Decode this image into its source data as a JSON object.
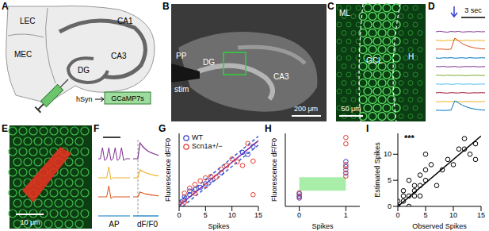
{
  "panel_labels": [
    "A",
    "B",
    "C",
    "D",
    "E",
    "F",
    "G",
    "H",
    "I"
  ],
  "A": {
    "regions": [
      "LEC",
      "MEC",
      "CA1",
      "CA3",
      "DG"
    ],
    "promoter": "hSyn",
    "virus": "GCaMP7s"
  },
  "B": {
    "labels": [
      "PP",
      "stim",
      "DG",
      "CA3"
    ],
    "scale_bar": "200 μm"
  },
  "C": {
    "labels": [
      "ML",
      "GCL",
      "H"
    ],
    "scale_bar": "50 μm"
  },
  "D": {
    "scale_bar": "3 sec",
    "traces": [
      {
        "color": "#7e2f8e",
        "values": [
          0,
          0.05,
          0,
          -0.04,
          0.03,
          0,
          0.04,
          -0.03,
          0,
          0.02,
          -0.02,
          0.03,
          0,
          0.01
        ]
      },
      {
        "color": "#edb120",
        "values": [
          0.02,
          0,
          -0.03,
          0.02,
          0,
          0.04,
          0,
          -0.02,
          0.03,
          0,
          -0.01,
          0.02,
          0,
          0
        ]
      },
      {
        "color": "#d95319",
        "values": [
          0,
          0.02,
          0,
          -0.02,
          0.01,
          1,
          0.75,
          0.5,
          0.34,
          0.22,
          0.14,
          0.08,
          0.04,
          0.02
        ]
      },
      {
        "color": "#0072bd",
        "values": [
          0,
          -0.03,
          0.02,
          0,
          0.03,
          -0.02,
          0,
          0.02,
          -0.02,
          0.03,
          0,
          -0.01,
          0.02,
          0
        ]
      },
      {
        "color": "#7e2f8e",
        "values": [
          0.01,
          0,
          0.03,
          -0.02,
          0,
          0.02,
          -0.03,
          0,
          0.02,
          0,
          0.03,
          -0.02,
          0,
          0.01
        ]
      },
      {
        "color": "#77ac30",
        "values": [
          0,
          0.02,
          -0.02,
          0.03,
          0,
          -0.01,
          0.02,
          0,
          -0.03,
          0.01,
          0,
          0.02,
          -0.01,
          0
        ]
      },
      {
        "color": "#4dbeee",
        "values": [
          0.02,
          -0.01,
          0,
          0.02,
          -0.02,
          0,
          0.03,
          -0.01,
          0,
          0.02,
          -0.02,
          0,
          0.01,
          0
        ]
      },
      {
        "color": "#a2142f",
        "values": [
          0,
          0.03,
          0,
          -0.02,
          0.02,
          0,
          -0.01,
          0.03,
          0,
          -0.02,
          0.01,
          0,
          0.02,
          0
        ]
      },
      {
        "color": "#edb120",
        "values": [
          0,
          -0.02,
          0.02,
          0,
          -0.01,
          0.03,
          0,
          -0.02,
          0.02,
          0,
          0.01,
          -0.02,
          0,
          0.01
        ]
      },
      {
        "color": "#0072bd",
        "values": [
          0,
          0.01,
          -0.02,
          0,
          0.02,
          0.85,
          0.66,
          0.46,
          0.32,
          0.21,
          0.13,
          0.08,
          0.04,
          0.02
        ]
      }
    ]
  },
  "E": {
    "scale_bar": "10 μm"
  },
  "F": {
    "labels": [
      "AP",
      "dF/F0"
    ],
    "ap_traces": [
      {
        "color": "#7e2f8e",
        "values": [
          0,
          0,
          1,
          -0.15,
          0,
          1,
          -0.15,
          0,
          1,
          -0.15,
          0,
          1,
          -0.15,
          0,
          0,
          0
        ]
      },
      {
        "color": "#edb120",
        "values": [
          0,
          0,
          0,
          0,
          0,
          1,
          -0.15,
          0,
          0,
          0,
          0,
          0,
          0,
          0,
          0,
          0
        ]
      },
      {
        "color": "#d95319",
        "values": [
          0,
          0,
          0,
          0,
          0,
          1,
          -0.15,
          0,
          0,
          0,
          0,
          0,
          0,
          0,
          0,
          0
        ]
      },
      {
        "color": "#0072bd",
        "values": [
          0,
          0,
          0,
          0,
          0,
          0,
          0,
          0,
          0,
          0,
          0,
          0,
          0,
          0,
          0,
          0
        ]
      }
    ],
    "df_traces": [
      {
        "color": "#7e2f8e",
        "values": [
          0,
          0,
          0,
          1,
          0.8,
          0.65,
          0.53,
          0.44,
          0.37,
          0.31,
          0.26,
          0.22
        ]
      },
      {
        "color": "#edb120",
        "values": [
          0,
          0,
          0,
          0.5,
          0.42,
          0.35,
          0.29,
          0.24,
          0.2,
          0.17,
          0.14,
          0.12
        ]
      },
      {
        "color": "#d95319",
        "values": [
          0,
          0,
          0,
          0.3,
          0.25,
          0.2,
          0.17,
          0.14,
          0.12,
          0.1,
          0.08,
          0.07
        ]
      },
      {
        "color": "#0072bd",
        "values": [
          0,
          0,
          0,
          0,
          0,
          0,
          0,
          0,
          0,
          0,
          0,
          0
        ]
      }
    ]
  },
  "chart_data": [
    {
      "type": "scatter",
      "xlabel": "Spikes",
      "ylabel": "Fluorescence dF/F0",
      "xlim": [
        0,
        15
      ],
      "xticks": [
        0,
        5,
        10,
        15
      ],
      "ylim": [
        0,
        10
      ],
      "tick_labels": "x",
      "legend": "upper left",
      "series": [
        {
          "name": "WT",
          "color": "#2f3ecf",
          "marker": "circle_open",
          "x": [
            0,
            0,
            1,
            1,
            2,
            2,
            3,
            4,
            5,
            6,
            8,
            12,
            13,
            14
          ],
          "y": [
            0.3,
            0.5,
            0.9,
            1.3,
            1.6,
            2.1,
            2.3,
            2.6,
            3.1,
            3.6,
            4.6,
            7.4,
            7.1,
            8.2
          ]
        },
        {
          "name": "Scn1a+/−",
          "color": "#e03a2f",
          "marker": "circle_open",
          "x": [
            0,
            1,
            1,
            2,
            3,
            3,
            4,
            5,
            5,
            6,
            7,
            8,
            9,
            10,
            11,
            12,
            13,
            14,
            14
          ],
          "y": [
            0.4,
            0.6,
            1.8,
            2.5,
            1.8,
            3.0,
            3.5,
            2.8,
            3.9,
            4.1,
            4.0,
            5.1,
            5.6,
            6.5,
            6.1,
            5.6,
            8.6,
            1.6,
            6.2
          ]
        }
      ],
      "lines": [
        {
          "color": "#8b2c9e",
          "line_style": "solid",
          "x": [
            0,
            15
          ],
          "y": [
            0.1,
            9.0
          ]
        },
        {
          "color": "#3c5ccf",
          "line_style": "dashed",
          "x": [
            0,
            15
          ],
          "y": [
            0.7,
            9.6
          ]
        },
        {
          "color": "#3c5ccf",
          "line_style": "dashed",
          "x": [
            0.7,
            15
          ],
          "y": [
            0,
            8.4
          ]
        }
      ]
    },
    {
      "type": "scatter",
      "xlabel": "Spikes",
      "ylabel": "Fluorescence dF/F0",
      "xlim": [
        -0.3,
        1.3
      ],
      "xticks": [
        0,
        1
      ],
      "ylim": [
        0,
        7
      ],
      "tick_labels": "x",
      "band": {
        "x": [
          0,
          1
        ],
        "y": [
          1.5,
          2.8
        ],
        "color": "#a8eea8"
      },
      "series": [
        {
          "name": "WT",
          "color": "#2f3ecf",
          "marker": "circle_open",
          "x": [
            0,
            0,
            0,
            1,
            1,
            1
          ],
          "y": [
            0.8,
            1.0,
            1.2,
            3.2,
            3.8,
            4.3
          ]
        },
        {
          "name": "Scn1a+/−",
          "color": "#e03a2f",
          "marker": "circle_open",
          "x": [
            0,
            0,
            1,
            1,
            1,
            1,
            1
          ],
          "y": [
            0.9,
            1.3,
            2.9,
            3.5,
            4.0,
            6.0,
            6.6
          ]
        }
      ]
    },
    {
      "type": "scatter",
      "xlabel": "Observed Spikes",
      "ylabel": "Estimated Spikes",
      "xlim": [
        0,
        15
      ],
      "xticks": [
        0,
        5,
        10,
        15
      ],
      "ylim": [
        0,
        14
      ],
      "yticks": [
        0,
        5,
        10
      ],
      "annotation": "***",
      "series": [
        {
          "color": "#000000",
          "marker": "circle_open",
          "x": [
            0,
            0,
            1,
            1,
            1,
            2,
            2,
            2,
            3,
            3,
            3,
            4,
            4,
            4,
            5,
            5,
            5,
            6,
            7,
            8,
            9,
            10,
            11,
            12,
            12,
            13,
            14,
            14
          ],
          "y": [
            0,
            1,
            1,
            2,
            3,
            2,
            0,
            5,
            4,
            2,
            3,
            4,
            6,
            2,
            5,
            7,
            10,
            8,
            4,
            7,
            9,
            8,
            11,
            11,
            13,
            10,
            12,
            9
          ]
        }
      ],
      "lines": [
        {
          "color": "#000000",
          "line_style": "solid",
          "x": [
            0,
            15
          ],
          "y": [
            0,
            13.5
          ]
        }
      ]
    }
  ]
}
